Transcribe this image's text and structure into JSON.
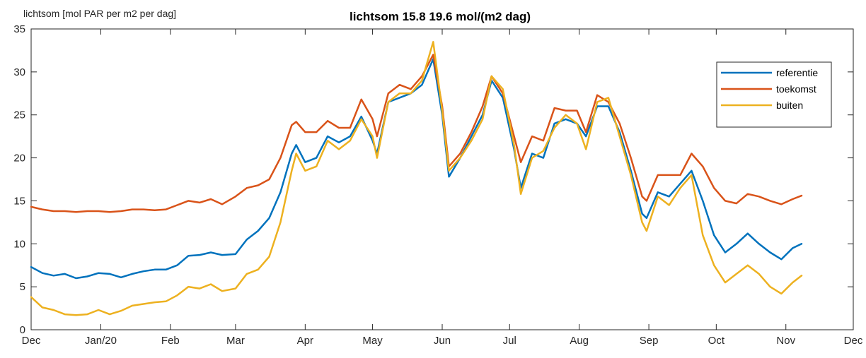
{
  "chart_data": {
    "type": "line",
    "title": "lichtsom 15.8 19.6 mol/(m2 dag)",
    "ylabel": "lichtsom [mol PAR per m2 per dag]",
    "xlabel": "",
    "ylim": [
      0,
      35
    ],
    "yticks": [
      "0",
      "5",
      "10",
      "15",
      "20",
      "25",
      "30",
      "35"
    ],
    "xlim": [
      "2019-12-01",
      "2020-12-01"
    ],
    "xticks": [
      {
        "label": "Dec",
        "date": "2019-12-01"
      },
      {
        "label": "Jan/20",
        "date": "2020-01-01"
      },
      {
        "label": "Feb",
        "date": "2020-02-01"
      },
      {
        "label": "Mar",
        "date": "2020-03-01"
      },
      {
        "label": "Apr",
        "date": "2020-04-01"
      },
      {
        "label": "May",
        "date": "2020-05-01"
      },
      {
        "label": "Jun",
        "date": "2020-06-01"
      },
      {
        "label": "Jul",
        "date": "2020-07-01"
      },
      {
        "label": "Aug",
        "date": "2020-08-01"
      },
      {
        "label": "Sep",
        "date": "2020-09-01"
      },
      {
        "label": "Oct",
        "date": "2020-10-01"
      },
      {
        "label": "Nov",
        "date": "2020-11-01"
      },
      {
        "label": "Dec",
        "date": "2020-12-01"
      }
    ],
    "grid": false,
    "legend_position": "top-right",
    "series": [
      {
        "name": "referentie",
        "color": "#0072BD",
        "points": [
          [
            "2019-12-01",
            7.3
          ],
          [
            "2019-12-06",
            6.6
          ],
          [
            "2019-12-11",
            6.3
          ],
          [
            "2019-12-16",
            6.5
          ],
          [
            "2019-12-21",
            6.0
          ],
          [
            "2019-12-26",
            6.2
          ],
          [
            "2019-12-31",
            6.6
          ],
          [
            "2020-01-05",
            6.5
          ],
          [
            "2020-01-10",
            6.1
          ],
          [
            "2020-01-15",
            6.5
          ],
          [
            "2020-01-20",
            6.8
          ],
          [
            "2020-01-25",
            7.0
          ],
          [
            "2020-01-30",
            7.0
          ],
          [
            "2020-02-04",
            7.5
          ],
          [
            "2020-02-09",
            8.6
          ],
          [
            "2020-02-14",
            8.7
          ],
          [
            "2020-02-19",
            9.0
          ],
          [
            "2020-02-24",
            8.7
          ],
          [
            "2020-03-01",
            8.8
          ],
          [
            "2020-03-06",
            10.5
          ],
          [
            "2020-03-11",
            11.5
          ],
          [
            "2020-03-16",
            13.0
          ],
          [
            "2020-03-21",
            16.0
          ],
          [
            "2020-03-26",
            20.5
          ],
          [
            "2020-03-28",
            21.5
          ],
          [
            "2020-04-01",
            19.5
          ],
          [
            "2020-04-06",
            20.0
          ],
          [
            "2020-04-11",
            22.5
          ],
          [
            "2020-04-16",
            21.8
          ],
          [
            "2020-04-21",
            22.5
          ],
          [
            "2020-04-26",
            24.8
          ],
          [
            "2020-05-01",
            22.0
          ],
          [
            "2020-05-03",
            20.5
          ],
          [
            "2020-05-08",
            26.5
          ],
          [
            "2020-05-13",
            27.0
          ],
          [
            "2020-05-18",
            27.5
          ],
          [
            "2020-05-23",
            28.5
          ],
          [
            "2020-05-28",
            31.5
          ],
          [
            "2020-06-01",
            25.0
          ],
          [
            "2020-06-04",
            17.8
          ],
          [
            "2020-06-09",
            20.0
          ],
          [
            "2020-06-14",
            22.5
          ],
          [
            "2020-06-19",
            25.0
          ],
          [
            "2020-06-23",
            29.0
          ],
          [
            "2020-06-28",
            27.0
          ],
          [
            "2020-07-03",
            21.0
          ],
          [
            "2020-07-06",
            16.5
          ],
          [
            "2020-07-11",
            20.5
          ],
          [
            "2020-07-16",
            20.0
          ],
          [
            "2020-07-21",
            24.0
          ],
          [
            "2020-07-26",
            24.5
          ],
          [
            "2020-07-31",
            24.0
          ],
          [
            "2020-08-04",
            22.5
          ],
          [
            "2020-08-09",
            26.0
          ],
          [
            "2020-08-14",
            26.0
          ],
          [
            "2020-08-19",
            23.0
          ],
          [
            "2020-08-24",
            18.5
          ],
          [
            "2020-08-29",
            13.5
          ],
          [
            "2020-08-31",
            13.0
          ],
          [
            "2020-09-05",
            16.0
          ],
          [
            "2020-09-10",
            15.5
          ],
          [
            "2020-09-15",
            17.0
          ],
          [
            "2020-09-20",
            18.5
          ],
          [
            "2020-09-25",
            15.0
          ],
          [
            "2020-09-30",
            11.0
          ],
          [
            "2020-10-05",
            9.0
          ],
          [
            "2020-10-10",
            10.0
          ],
          [
            "2020-10-15",
            11.2
          ],
          [
            "2020-10-20",
            10.0
          ],
          [
            "2020-10-25",
            9.0
          ],
          [
            "2020-10-30",
            8.2
          ],
          [
            "2020-11-04",
            9.5
          ],
          [
            "2020-11-08",
            10.0
          ]
        ]
      },
      {
        "name": "toekomst",
        "color": "#D95319",
        "points": [
          [
            "2019-12-01",
            14.3
          ],
          [
            "2019-12-06",
            14.0
          ],
          [
            "2019-12-11",
            13.8
          ],
          [
            "2019-12-16",
            13.8
          ],
          [
            "2019-12-21",
            13.7
          ],
          [
            "2019-12-26",
            13.8
          ],
          [
            "2019-12-31",
            13.8
          ],
          [
            "2020-01-05",
            13.7
          ],
          [
            "2020-01-10",
            13.8
          ],
          [
            "2020-01-15",
            14.0
          ],
          [
            "2020-01-20",
            14.0
          ],
          [
            "2020-01-25",
            13.9
          ],
          [
            "2020-01-30",
            14.0
          ],
          [
            "2020-02-04",
            14.5
          ],
          [
            "2020-02-09",
            15.0
          ],
          [
            "2020-02-14",
            14.8
          ],
          [
            "2020-02-19",
            15.2
          ],
          [
            "2020-02-24",
            14.6
          ],
          [
            "2020-03-01",
            15.5
          ],
          [
            "2020-03-06",
            16.5
          ],
          [
            "2020-03-11",
            16.8
          ],
          [
            "2020-03-16",
            17.5
          ],
          [
            "2020-03-21",
            20.0
          ],
          [
            "2020-03-26",
            23.8
          ],
          [
            "2020-03-28",
            24.2
          ],
          [
            "2020-04-01",
            23.0
          ],
          [
            "2020-04-06",
            23.0
          ],
          [
            "2020-04-11",
            24.3
          ],
          [
            "2020-04-16",
            23.5
          ],
          [
            "2020-04-21",
            23.5
          ],
          [
            "2020-04-26",
            26.8
          ],
          [
            "2020-05-01",
            24.5
          ],
          [
            "2020-05-03",
            22.5
          ],
          [
            "2020-05-08",
            27.5
          ],
          [
            "2020-05-13",
            28.5
          ],
          [
            "2020-05-18",
            28.0
          ],
          [
            "2020-05-23",
            29.5
          ],
          [
            "2020-05-28",
            32.0
          ],
          [
            "2020-06-01",
            26.0
          ],
          [
            "2020-06-04",
            19.0
          ],
          [
            "2020-06-09",
            20.5
          ],
          [
            "2020-06-14",
            23.0
          ],
          [
            "2020-06-19",
            26.0
          ],
          [
            "2020-06-23",
            29.5
          ],
          [
            "2020-06-28",
            27.5
          ],
          [
            "2020-07-03",
            22.5
          ],
          [
            "2020-07-06",
            19.5
          ],
          [
            "2020-07-11",
            22.5
          ],
          [
            "2020-07-16",
            22.0
          ],
          [
            "2020-07-21",
            25.8
          ],
          [
            "2020-07-26",
            25.5
          ],
          [
            "2020-07-31",
            25.5
          ],
          [
            "2020-08-04",
            23.0
          ],
          [
            "2020-08-09",
            27.3
          ],
          [
            "2020-08-14",
            26.5
          ],
          [
            "2020-08-19",
            24.0
          ],
          [
            "2020-08-24",
            20.0
          ],
          [
            "2020-08-29",
            15.5
          ],
          [
            "2020-08-31",
            15.0
          ],
          [
            "2020-09-05",
            18.0
          ],
          [
            "2020-09-10",
            18.0
          ],
          [
            "2020-09-15",
            18.0
          ],
          [
            "2020-09-20",
            20.5
          ],
          [
            "2020-09-25",
            19.0
          ],
          [
            "2020-09-30",
            16.5
          ],
          [
            "2020-10-05",
            15.0
          ],
          [
            "2020-10-10",
            14.7
          ],
          [
            "2020-10-15",
            15.8
          ],
          [
            "2020-10-20",
            15.5
          ],
          [
            "2020-10-25",
            15.0
          ],
          [
            "2020-10-30",
            14.6
          ],
          [
            "2020-11-04",
            15.2
          ],
          [
            "2020-11-08",
            15.6
          ]
        ]
      },
      {
        "name": "buiten",
        "color": "#EDB120",
        "points": [
          [
            "2019-12-01",
            3.8
          ],
          [
            "2019-12-06",
            2.6
          ],
          [
            "2019-12-11",
            2.3
          ],
          [
            "2019-12-16",
            1.8
          ],
          [
            "2019-12-21",
            1.7
          ],
          [
            "2019-12-26",
            1.8
          ],
          [
            "2019-12-31",
            2.3
          ],
          [
            "2020-01-05",
            1.8
          ],
          [
            "2020-01-10",
            2.2
          ],
          [
            "2020-01-15",
            2.8
          ],
          [
            "2020-01-20",
            3.0
          ],
          [
            "2020-01-25",
            3.2
          ],
          [
            "2020-01-30",
            3.3
          ],
          [
            "2020-02-04",
            4.0
          ],
          [
            "2020-02-09",
            5.0
          ],
          [
            "2020-02-14",
            4.8
          ],
          [
            "2020-02-19",
            5.3
          ],
          [
            "2020-02-24",
            4.5
          ],
          [
            "2020-03-01",
            4.8
          ],
          [
            "2020-03-06",
            6.5
          ],
          [
            "2020-03-11",
            7.0
          ],
          [
            "2020-03-16",
            8.5
          ],
          [
            "2020-03-21",
            12.5
          ],
          [
            "2020-03-26",
            18.5
          ],
          [
            "2020-03-28",
            20.5
          ],
          [
            "2020-04-01",
            18.5
          ],
          [
            "2020-04-06",
            19.0
          ],
          [
            "2020-04-11",
            22.0
          ],
          [
            "2020-04-16",
            21.0
          ],
          [
            "2020-04-21",
            22.0
          ],
          [
            "2020-04-26",
            24.5
          ],
          [
            "2020-05-01",
            22.5
          ],
          [
            "2020-05-03",
            20.0
          ],
          [
            "2020-05-08",
            26.5
          ],
          [
            "2020-05-13",
            27.5
          ],
          [
            "2020-05-18",
            27.5
          ],
          [
            "2020-05-23",
            29.0
          ],
          [
            "2020-05-28",
            33.5
          ],
          [
            "2020-06-01",
            25.5
          ],
          [
            "2020-06-04",
            18.5
          ],
          [
            "2020-06-09",
            20.0
          ],
          [
            "2020-06-14",
            22.0
          ],
          [
            "2020-06-19",
            24.5
          ],
          [
            "2020-06-23",
            29.5
          ],
          [
            "2020-06-28",
            28.0
          ],
          [
            "2020-07-03",
            21.5
          ],
          [
            "2020-07-06",
            15.8
          ],
          [
            "2020-07-11",
            20.0
          ],
          [
            "2020-07-16",
            20.8
          ],
          [
            "2020-07-21",
            23.5
          ],
          [
            "2020-07-26",
            25.0
          ],
          [
            "2020-07-31",
            24.0
          ],
          [
            "2020-08-04",
            21.0
          ],
          [
            "2020-08-09",
            26.5
          ],
          [
            "2020-08-14",
            27.0
          ],
          [
            "2020-08-19",
            22.5
          ],
          [
            "2020-08-24",
            18.0
          ],
          [
            "2020-08-29",
            12.5
          ],
          [
            "2020-08-31",
            11.5
          ],
          [
            "2020-09-05",
            15.5
          ],
          [
            "2020-09-10",
            14.5
          ],
          [
            "2020-09-15",
            16.5
          ],
          [
            "2020-09-20",
            18.0
          ],
          [
            "2020-09-25",
            11.0
          ],
          [
            "2020-09-30",
            7.5
          ],
          [
            "2020-10-05",
            5.5
          ],
          [
            "2020-10-10",
            6.5
          ],
          [
            "2020-10-15",
            7.5
          ],
          [
            "2020-10-20",
            6.5
          ],
          [
            "2020-10-25",
            5.0
          ],
          [
            "2020-10-30",
            4.2
          ],
          [
            "2020-11-04",
            5.5
          ],
          [
            "2020-11-08",
            6.3
          ]
        ]
      }
    ]
  }
}
